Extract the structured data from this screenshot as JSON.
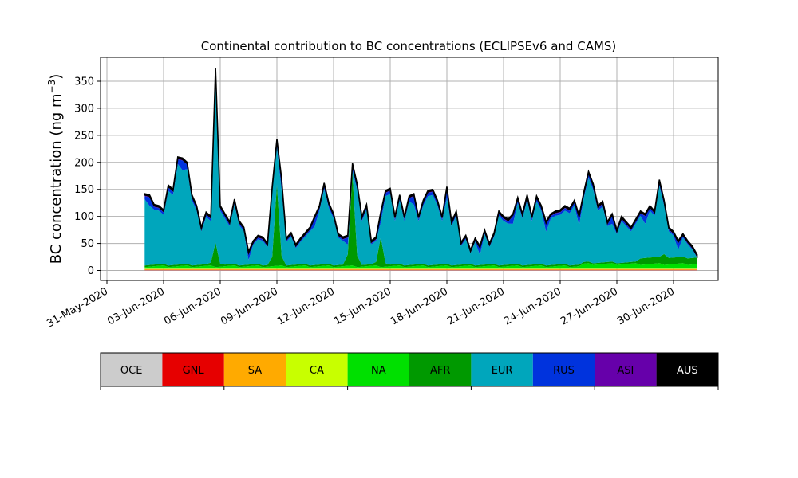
{
  "chart_data": {
    "type": "area",
    "stacked": true,
    "title": "Continental contribution to BC concentrations (ECLIPSEv6 and CAMS)",
    "xlabel": "",
    "ylabel": "BC concentration (ng m",
    "ylabel_sup": "−3",
    "ylabel_close": ")",
    "x_start": "2020-06-02",
    "x_end": "2020-07-01",
    "xlim": [
      "2020-05-31",
      "2020-07-03"
    ],
    "ylim": [
      -20,
      390
    ],
    "x_ticks": [
      {
        "label": "31-May-2020",
        "date": "2020-05-31"
      },
      {
        "label": "03-Jun-2020",
        "date": "2020-06-03"
      },
      {
        "label": "06-Jun-2020",
        "date": "2020-06-06"
      },
      {
        "label": "09-Jun-2020",
        "date": "2020-06-09"
      },
      {
        "label": "12-Jun-2020",
        "date": "2020-06-12"
      },
      {
        "label": "15-Jun-2020",
        "date": "2020-06-15"
      },
      {
        "label": "18-Jun-2020",
        "date": "2020-06-18"
      },
      {
        "label": "21-Jun-2020",
        "date": "2020-06-21"
      },
      {
        "label": "24-Jun-2020",
        "date": "2020-06-24"
      },
      {
        "label": "27-Jun-2020",
        "date": "2020-06-27"
      },
      {
        "label": "30-Jun-2020",
        "date": "2020-06-30"
      }
    ],
    "y_ticks": [
      {
        "label": "0",
        "value": 0
      },
      {
        "label": "50",
        "value": 50
      },
      {
        "label": "100",
        "value": 100
      },
      {
        "label": "150",
        "value": 150
      },
      {
        "label": "200",
        "value": 200
      },
      {
        "label": "250",
        "value": 250
      },
      {
        "label": "300",
        "value": 300
      },
      {
        "label": "350",
        "value": 350
      }
    ],
    "grid": true,
    "total": [
      [
        "2020-06-02 00:00",
        142
      ],
      [
        "2020-06-02 06:00",
        140
      ],
      [
        "2020-06-02 12:00",
        122
      ],
      [
        "2020-06-02 18:00",
        120
      ],
      [
        "2020-06-03 00:00",
        112
      ],
      [
        "2020-06-03 06:00",
        158
      ],
      [
        "2020-06-03 12:00",
        150
      ],
      [
        "2020-06-03 18:00",
        210
      ],
      [
        "2020-06-04 00:00",
        208
      ],
      [
        "2020-06-04 06:00",
        200
      ],
      [
        "2020-06-04 12:00",
        140
      ],
      [
        "2020-06-04 18:00",
        120
      ],
      [
        "2020-06-05 00:00",
        80
      ],
      [
        "2020-06-05 06:00",
        108
      ],
      [
        "2020-06-05 12:00",
        100
      ],
      [
        "2020-06-05 18:00",
        375
      ],
      [
        "2020-06-06 00:00",
        120
      ],
      [
        "2020-06-06 06:00",
        105
      ],
      [
        "2020-06-06 12:00",
        90
      ],
      [
        "2020-06-06 18:00",
        132
      ],
      [
        "2020-06-07 00:00",
        92
      ],
      [
        "2020-06-07 06:00",
        80
      ],
      [
        "2020-06-07 12:00",
        35
      ],
      [
        "2020-06-07 18:00",
        55
      ],
      [
        "2020-06-08 00:00",
        65
      ],
      [
        "2020-06-08 06:00",
        62
      ],
      [
        "2020-06-08 12:00",
        50
      ],
      [
        "2020-06-08 18:00",
        155
      ],
      [
        "2020-06-09 00:00",
        243
      ],
      [
        "2020-06-09 06:00",
        170
      ],
      [
        "2020-06-09 12:00",
        60
      ],
      [
        "2020-06-09 18:00",
        70
      ],
      [
        "2020-06-10 00:00",
        48
      ],
      [
        "2020-06-10 06:00",
        60
      ],
      [
        "2020-06-10 12:00",
        70
      ],
      [
        "2020-06-10 18:00",
        80
      ],
      [
        "2020-06-11 00:00",
        100
      ],
      [
        "2020-06-11 06:00",
        120
      ],
      [
        "2020-06-11 12:00",
        162
      ],
      [
        "2020-06-11 18:00",
        125
      ],
      [
        "2020-06-12 00:00",
        105
      ],
      [
        "2020-06-12 06:00",
        68
      ],
      [
        "2020-06-12 12:00",
        62
      ],
      [
        "2020-06-12 18:00",
        65
      ],
      [
        "2020-06-13 00:00",
        198
      ],
      [
        "2020-06-13 06:00",
        160
      ],
      [
        "2020-06-13 12:00",
        100
      ],
      [
        "2020-06-13 18:00",
        122
      ],
      [
        "2020-06-14 00:00",
        55
      ],
      [
        "2020-06-14 06:00",
        62
      ],
      [
        "2020-06-14 12:00",
        108
      ],
      [
        "2020-06-14 18:00",
        148
      ],
      [
        "2020-06-15 00:00",
        152
      ],
      [
        "2020-06-15 06:00",
        100
      ],
      [
        "2020-06-15 12:00",
        140
      ],
      [
        "2020-06-15 18:00",
        100
      ],
      [
        "2020-06-16 00:00",
        138
      ],
      [
        "2020-06-16 06:00",
        142
      ],
      [
        "2020-06-16 12:00",
        100
      ],
      [
        "2020-06-16 18:00",
        130
      ],
      [
        "2020-06-17 00:00",
        148
      ],
      [
        "2020-06-17 06:00",
        150
      ],
      [
        "2020-06-17 12:00",
        130
      ],
      [
        "2020-06-17 18:00",
        100
      ],
      [
        "2020-06-18 00:00",
        155
      ],
      [
        "2020-06-18 06:00",
        90
      ],
      [
        "2020-06-18 12:00",
        110
      ],
      [
        "2020-06-18 18:00",
        52
      ],
      [
        "2020-06-19 00:00",
        65
      ],
      [
        "2020-06-19 06:00",
        38
      ],
      [
        "2020-06-19 12:00",
        60
      ],
      [
        "2020-06-19 18:00",
        45
      ],
      [
        "2020-06-20 00:00",
        75
      ],
      [
        "2020-06-20 06:00",
        50
      ],
      [
        "2020-06-20 12:00",
        70
      ],
      [
        "2020-06-20 18:00",
        110
      ],
      [
        "2020-06-21 00:00",
        100
      ],
      [
        "2020-06-21 06:00",
        95
      ],
      [
        "2020-06-21 12:00",
        105
      ],
      [
        "2020-06-21 18:00",
        135
      ],
      [
        "2020-06-22 00:00",
        105
      ],
      [
        "2020-06-22 06:00",
        140
      ],
      [
        "2020-06-22 12:00",
        100
      ],
      [
        "2020-06-22 18:00",
        138
      ],
      [
        "2020-06-23 00:00",
        120
      ],
      [
        "2020-06-23 06:00",
        90
      ],
      [
        "2020-06-23 12:00",
        105
      ],
      [
        "2020-06-23 18:00",
        110
      ],
      [
        "2020-06-24 00:00",
        112
      ],
      [
        "2020-06-24 06:00",
        120
      ],
      [
        "2020-06-24 12:00",
        115
      ],
      [
        "2020-06-24 18:00",
        130
      ],
      [
        "2020-06-25 00:00",
        102
      ],
      [
        "2020-06-25 06:00",
        145
      ],
      [
        "2020-06-25 12:00",
        183
      ],
      [
        "2020-06-25 18:00",
        160
      ],
      [
        "2020-06-26 00:00",
        120
      ],
      [
        "2020-06-26 06:00",
        128
      ],
      [
        "2020-06-26 12:00",
        90
      ],
      [
        "2020-06-26 18:00",
        105
      ],
      [
        "2020-06-27 00:00",
        75
      ],
      [
        "2020-06-27 06:00",
        100
      ],
      [
        "2020-06-27 12:00",
        90
      ],
      [
        "2020-06-27 18:00",
        80
      ],
      [
        "2020-06-28 00:00",
        95
      ],
      [
        "2020-06-28 06:00",
        110
      ],
      [
        "2020-06-28 12:00",
        105
      ],
      [
        "2020-06-28 18:00",
        120
      ],
      [
        "2020-06-29 00:00",
        110
      ],
      [
        "2020-06-29 06:00",
        168
      ],
      [
        "2020-06-29 12:00",
        130
      ],
      [
        "2020-06-29 18:00",
        80
      ],
      [
        "2020-06-30 00:00",
        72
      ],
      [
        "2020-06-30 06:00",
        55
      ],
      [
        "2020-06-30 12:00",
        68
      ],
      [
        "2020-06-30 18:00",
        55
      ],
      [
        "2020-07-01 00:00",
        45
      ],
      [
        "2020-07-01 06:00",
        25
      ]
    ],
    "series": [
      {
        "name": "OCE",
        "color": "#cccccc"
      },
      {
        "name": "GNL",
        "color": "#e60000"
      },
      {
        "name": "SA",
        "color": "#ffaa00"
      },
      {
        "name": "CA",
        "color": "#c8ff00"
      },
      {
        "name": "NA",
        "color": "#00e000"
      },
      {
        "name": "AFR",
        "color": "#009900"
      },
      {
        "name": "EUR",
        "color": "#00a6bc"
      },
      {
        "name": "RUS",
        "color": "#0033dd"
      },
      {
        "name": "ASI",
        "color": "#6600aa"
      },
      {
        "name": "AUS",
        "color": "#000000"
      }
    ],
    "afr_peaks": [
      {
        "date": "2020-06-05 18:00",
        "value": 45
      },
      {
        "date": "2020-06-09 00:00",
        "value": 150
      },
      {
        "date": "2020-06-13 00:00",
        "value": 185
      },
      {
        "date": "2020-06-14 12:00",
        "value": 55
      },
      {
        "date": "2020-06-29 12:00",
        "value": 20
      }
    ],
    "legend": {
      "placement": "below",
      "labels": [
        "OCE",
        "GNL",
        "SA",
        "CA",
        "NA",
        "AFR",
        "EUR",
        "RUS",
        "ASI",
        "AUS"
      ]
    }
  }
}
